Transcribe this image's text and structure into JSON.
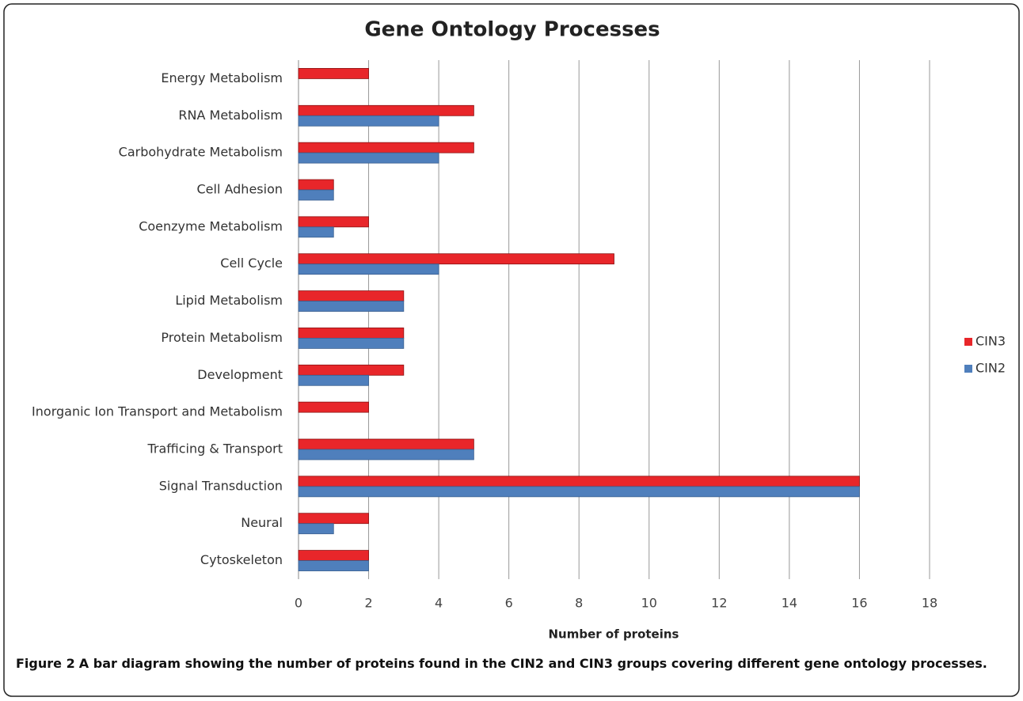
{
  "chart_data": {
    "type": "hbar",
    "title": "Gene Ontology Processes",
    "x_label": "Number of proteins",
    "categories": [
      "Energy Metabolism",
      "RNA Metabolism",
      "Carbohydrate Metabolism",
      "Cell Adhesion",
      "Coenzyme Metabolism",
      "Cell Cycle",
      "Lipid Metabolism",
      "Protein Metabolism",
      "Development",
      "Inorganic Ion Transport and Metabolism",
      "Trafficing & Transport",
      "Signal Transduction",
      "Neural",
      "Cytoskeleton"
    ],
    "series": [
      {
        "name": "CIN3",
        "color": "#e8262a",
        "values": [
          2,
          5,
          5,
          1,
          2,
          9,
          3,
          3,
          3,
          2,
          5,
          16,
          2,
          2
        ]
      },
      {
        "name": "CIN2",
        "color": "#4f7fbc",
        "values": [
          0,
          4,
          4,
          1,
          1,
          4,
          3,
          3,
          2,
          0,
          5,
          16,
          1,
          2
        ]
      }
    ],
    "xlim": [
      0,
      18
    ],
    "xticks": [
      0,
      2,
      4,
      6,
      8,
      10,
      12,
      14,
      16,
      18
    ],
    "grid": true,
    "legend": "right"
  },
  "caption": {
    "label": "Figure 2",
    "text": "A bar diagram showing the number of proteins found in the CIN2 and CIN3 groups covering different gene ontology processes."
  }
}
